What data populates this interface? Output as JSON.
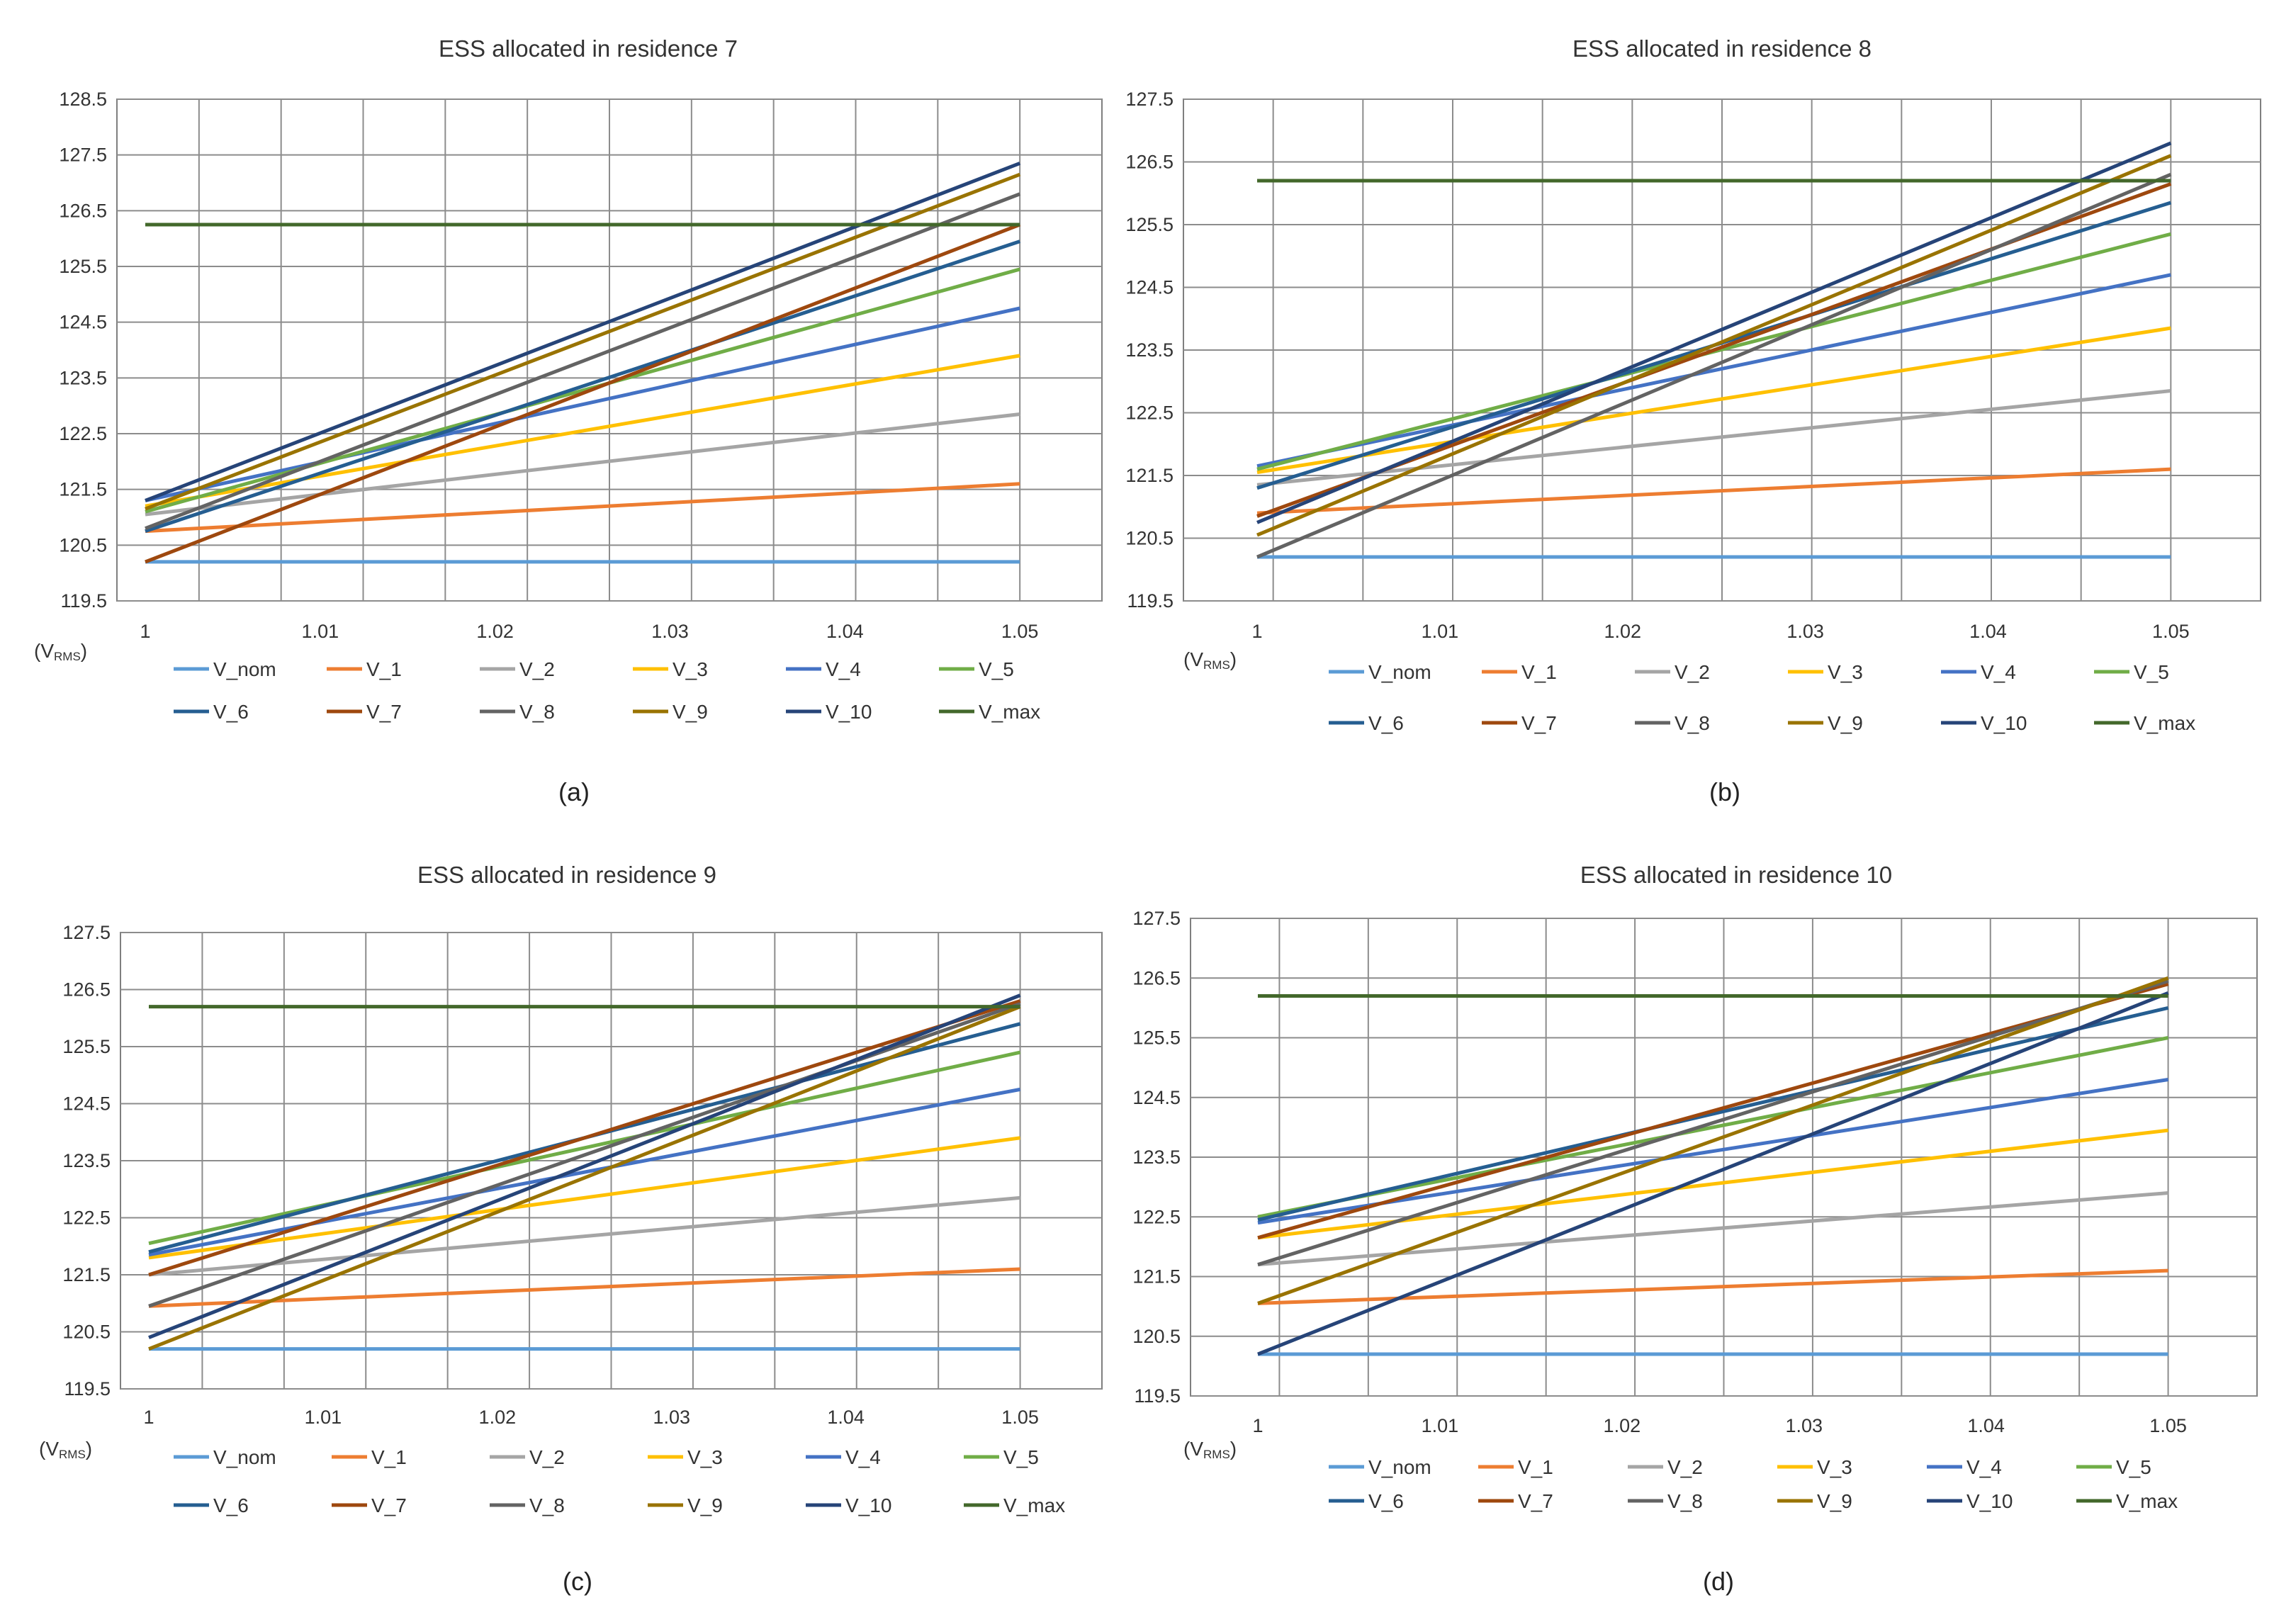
{
  "figure": {
    "unit_label_prefix": "(V",
    "unit_label_sub": "RMS",
    "unit_label_suffix": ")"
  },
  "series_colors": {
    "V_nom": "#5B9BD5",
    "V_1": "#ED7D31",
    "V_2": "#A5A5A5",
    "V_3": "#FFC000",
    "V_4": "#4472C4",
    "V_5": "#70AD47",
    "V_6": "#255E91",
    "V_7": "#9E480E",
    "V_8": "#636363",
    "V_9": "#997300",
    "V_10": "#264478",
    "V_max": "#43682B"
  },
  "chart_data": [
    {
      "type": "line",
      "caption": "(a)",
      "title": "ESS  allocated in residence 7",
      "categories": [
        "1",
        "1.01",
        "1.02",
        "1.03",
        "1.04",
        "1.05"
      ],
      "x_range": [
        1.0,
        1.05
      ],
      "ylim": [
        119.5,
        128.5
      ],
      "yticks": [
        "119.5",
        "120.5",
        "121.5",
        "122.5",
        "123.5",
        "124.5",
        "125.5",
        "126.5",
        "127.5",
        "128.5"
      ],
      "series": [
        {
          "name": "V_nom",
          "start": 120.2,
          "end": 120.2
        },
        {
          "name": "V_1",
          "start": 120.75,
          "end": 121.6
        },
        {
          "name": "V_2",
          "start": 121.05,
          "end": 122.85
        },
        {
          "name": "V_3",
          "start": 121.2,
          "end": 123.9
        },
        {
          "name": "V_4",
          "start": 121.3,
          "end": 124.75
        },
        {
          "name": "V_5",
          "start": 121.1,
          "end": 125.45
        },
        {
          "name": "V_6",
          "start": 120.75,
          "end": 125.95
        },
        {
          "name": "V_7",
          "start": 120.2,
          "end": 126.25
        },
        {
          "name": "V_8",
          "start": 120.8,
          "end": 126.8
        },
        {
          "name": "V_9",
          "start": 121.15,
          "end": 127.15
        },
        {
          "name": "V_10",
          "start": 121.3,
          "end": 127.35
        },
        {
          "name": "V_max",
          "start": 126.25,
          "end": 126.25
        }
      ]
    },
    {
      "type": "line",
      "caption": "(b)",
      "title": "ESS allocated in residence 8",
      "categories": [
        "1",
        "1.01",
        "1.02",
        "1.03",
        "1.04",
        "1.05"
      ],
      "x_range": [
        1.0,
        1.05
      ],
      "ylim": [
        119.5,
        127.5
      ],
      "yticks": [
        "119.5",
        "120.5",
        "121.5",
        "122.5",
        "123.5",
        "124.5",
        "125.5",
        "126.5",
        "127.5"
      ],
      "series": [
        {
          "name": "V_nom",
          "start": 120.2,
          "end": 120.2
        },
        {
          "name": "V_1",
          "start": 120.9,
          "end": 121.6
        },
        {
          "name": "V_2",
          "start": 121.35,
          "end": 122.85
        },
        {
          "name": "V_3",
          "start": 121.55,
          "end": 123.85
        },
        {
          "name": "V_4",
          "start": 121.65,
          "end": 124.7
        },
        {
          "name": "V_5",
          "start": 121.6,
          "end": 125.35
        },
        {
          "name": "V_6",
          "start": 121.3,
          "end": 125.85
        },
        {
          "name": "V_7",
          "start": 120.85,
          "end": 126.15
        },
        {
          "name": "V_8",
          "start": 120.2,
          "end": 126.3
        },
        {
          "name": "V_9",
          "start": 120.55,
          "end": 126.6
        },
        {
          "name": "V_10",
          "start": 120.75,
          "end": 126.8
        },
        {
          "name": "V_max",
          "start": 126.2,
          "end": 126.2
        }
      ]
    },
    {
      "type": "line",
      "caption": "(c)",
      "title": "ESS allocated in residence 9",
      "categories": [
        "1",
        "1.01",
        "1.02",
        "1.03",
        "1.04",
        "1.05"
      ],
      "x_range": [
        1.0,
        1.05
      ],
      "ylim": [
        119.5,
        127.5
      ],
      "yticks": [
        "119.5",
        "120.5",
        "121.5",
        "122.5",
        "123.5",
        "124.5",
        "125.5",
        "126.5",
        "127.5"
      ],
      "series": [
        {
          "name": "V_nom",
          "start": 120.2,
          "end": 120.2
        },
        {
          "name": "V_1",
          "start": 120.95,
          "end": 121.6
        },
        {
          "name": "V_2",
          "start": 121.5,
          "end": 122.85
        },
        {
          "name": "V_3",
          "start": 121.8,
          "end": 123.9
        },
        {
          "name": "V_4",
          "start": 121.85,
          "end": 124.75
        },
        {
          "name": "V_5",
          "start": 122.05,
          "end": 125.4
        },
        {
          "name": "V_6",
          "start": 121.9,
          "end": 125.9
        },
        {
          "name": "V_7",
          "start": 121.5,
          "end": 126.3
        },
        {
          "name": "V_8",
          "start": 120.95,
          "end": 126.25
        },
        {
          "name": "V_9",
          "start": 120.2,
          "end": 126.2
        },
        {
          "name": "V_10",
          "start": 120.4,
          "end": 126.4
        },
        {
          "name": "V_max",
          "start": 126.2,
          "end": 126.2
        }
      ]
    },
    {
      "type": "line",
      "caption": "(d)",
      "title": "ESS allocated in residence 10",
      "categories": [
        "1",
        "1.01",
        "1.02",
        "1.03",
        "1.04",
        "1.05"
      ],
      "x_range": [
        1.0,
        1.05
      ],
      "ylim": [
        119.5,
        127.5
      ],
      "yticks": [
        "119.5",
        "120.5",
        "121.5",
        "122.5",
        "123.5",
        "124.5",
        "125.5",
        "126.5",
        "127.5"
      ],
      "series": [
        {
          "name": "V_nom",
          "start": 120.2,
          "end": 120.2
        },
        {
          "name": "V_1",
          "start": 121.05,
          "end": 121.6
        },
        {
          "name": "V_2",
          "start": 121.7,
          "end": 122.9
        },
        {
          "name": "V_3",
          "start": 122.15,
          "end": 123.95
        },
        {
          "name": "V_4",
          "start": 122.4,
          "end": 124.8
        },
        {
          "name": "V_5",
          "start": 122.5,
          "end": 125.5
        },
        {
          "name": "V_6",
          "start": 122.45,
          "end": 126.0
        },
        {
          "name": "V_7",
          "start": 122.15,
          "end": 126.4
        },
        {
          "name": "V_8",
          "start": 121.7,
          "end": 126.45
        },
        {
          "name": "V_9",
          "start": 121.05,
          "end": 126.5
        },
        {
          "name": "V_10",
          "start": 120.2,
          "end": 126.25
        },
        {
          "name": "V_max",
          "start": 126.2,
          "end": 126.2
        }
      ]
    }
  ]
}
